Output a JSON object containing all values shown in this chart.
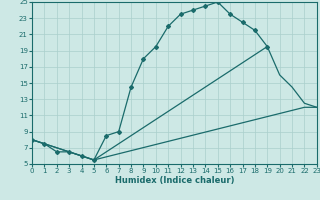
{
  "xlabel": "Humidex (Indice chaleur)",
  "xlim": [
    0,
    23
  ],
  "ylim": [
    5,
    25
  ],
  "xticks": [
    0,
    1,
    2,
    3,
    4,
    5,
    6,
    7,
    8,
    9,
    10,
    11,
    12,
    13,
    14,
    15,
    16,
    17,
    18,
    19,
    20,
    21,
    22,
    23
  ],
  "yticks": [
    5,
    7,
    9,
    11,
    13,
    15,
    17,
    19,
    21,
    23,
    25
  ],
  "bg_color": "#cde8e5",
  "line_color": "#1a6b6b",
  "grid_color": "#aacfcc",
  "curve_markers": {
    "x": [
      0,
      1,
      2,
      3,
      4,
      5,
      6,
      7,
      8,
      9,
      10,
      11,
      12,
      13,
      14,
      15,
      16,
      17,
      18,
      19
    ],
    "y": [
      8,
      7.5,
      6.5,
      6.5,
      6,
      5.5,
      8.5,
      9,
      14.5,
      18,
      19.5,
      22,
      23.5,
      24,
      24.5,
      25,
      23.5,
      22.5,
      21.5,
      19.5
    ]
  },
  "curve_upper": {
    "x": [
      0,
      5,
      19,
      20,
      21,
      22,
      23
    ],
    "y": [
      8,
      5.5,
      19.5,
      16,
      14.5,
      12.5,
      12
    ]
  },
  "curve_lower": {
    "x": [
      0,
      5,
      22,
      23
    ],
    "y": [
      8,
      5.5,
      12,
      12
    ]
  }
}
